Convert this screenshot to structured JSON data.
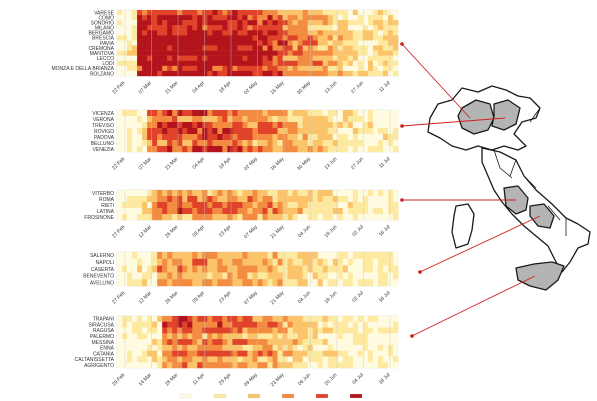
{
  "chart_data": [
    {
      "type": "heatmap",
      "region": "Lombardia",
      "rows": [
        "VARESE",
        "COMO",
        "SONDRIO",
        "MILANO",
        "BERGAMO",
        "BRESCIA",
        "PAVIA",
        "CREMONA",
        "MANTOVA",
        "LECCO",
        "LODI",
        "MONZA E DELLA BRIANZA",
        "BOLZANO"
      ],
      "x_ticks": [
        "22-Feb",
        "07-Mar",
        "21-Mar",
        "04-Apr",
        "18-Apr",
        "02-May",
        "16-May",
        "30-May",
        "13-Jun",
        "27-Jun",
        "11-Jul"
      ],
      "x_tick_labels": [
        "22 Feb",
        "07 Mar",
        "21 Mar",
        "04 Apr",
        "18 Apr",
        "02 May",
        "16 May",
        "30 May",
        "13 Jun",
        "27 Jun",
        "11 Jul"
      ],
      "intensity": {
        "peak_start": 0.06,
        "peak_end": 0.42,
        "peak_level": 0.95,
        "tail_level": 0.25
      }
    },
    {
      "type": "heatmap",
      "region": "Veneto",
      "rows": [
        "VICENZA",
        "VERONA",
        "TREVISO",
        "ROVIGO",
        "PADOVA",
        "BELLUNO",
        "VENEZIA"
      ],
      "x_ticks": [
        "22-Feb",
        "07-Mar",
        "21-Mar",
        "04-Apr",
        "18-Apr",
        "02-May",
        "16-May",
        "30-May",
        "13-Jun",
        "27-Jun",
        "11-Jul"
      ],
      "x_tick_labels": [
        "22 Feb",
        "07 Mar",
        "21 Mar",
        "04 Apr",
        "18 Apr",
        "02 May",
        "16 May",
        "30 May",
        "13 Jun",
        "27 Jun",
        "11 Jul"
      ],
      "intensity": {
        "peak_start": 0.1,
        "peak_end": 0.4,
        "peak_level": 0.75,
        "tail_level": 0.18
      }
    },
    {
      "type": "heatmap",
      "region": "Lazio",
      "rows": [
        "VITERBO",
        "ROMA",
        "RIETI",
        "LATINA",
        "FROSINONE"
      ],
      "x_ticks": [
        "27-Feb",
        "12-Mar",
        "26-Mar",
        "09-Apr",
        "23-Apr",
        "07-May",
        "21-May",
        "04-Jun",
        "18-Jun",
        "02-Jul",
        "16-Jul"
      ],
      "x_tick_labels": [
        "27 Feb",
        "12 Mar",
        "26 Mar",
        "09 Apr",
        "23 Apr",
        "07 May",
        "21 May",
        "04 Jun",
        "18 Jun",
        "02 Jul",
        "16 Jul"
      ],
      "intensity": {
        "peak_start": 0.12,
        "peak_end": 0.45,
        "peak_level": 0.55,
        "tail_level": 0.12
      }
    },
    {
      "type": "heatmap",
      "region": "Campania",
      "rows": [
        "SALERNO",
        "NAPOLI",
        "CASERTA",
        "BENEVENTO",
        "AVELLINO"
      ],
      "x_ticks": [
        "27-Feb",
        "12-Mar",
        "26-Mar",
        "09-Apr",
        "23-Apr",
        "07-May",
        "21-May",
        "04-Jun",
        "18-Jun",
        "02-Jul",
        "16-Jul"
      ],
      "x_tick_labels": [
        "27 Feb",
        "12 Mar",
        "26 Mar",
        "09 Apr",
        "23 Apr",
        "07 May",
        "21 May",
        "04 Jun",
        "18 Jun",
        "02 Jul",
        "16 Jul"
      ],
      "intensity": {
        "peak_start": 0.14,
        "peak_end": 0.45,
        "peak_level": 0.45,
        "tail_level": 0.12
      }
    },
    {
      "type": "heatmap",
      "region": "Sicilia",
      "rows": [
        "TRAPANI",
        "SIRACUSA",
        "RAGUSA",
        "PALERMO",
        "MESSINA",
        "ENNA",
        "CATANIA",
        "CALTANISSETTA",
        "AGRIGENTO"
      ],
      "x_ticks": [
        "29-Feb",
        "14-Mar",
        "28-Mar",
        "11-Apr",
        "25-Apr",
        "09-May",
        "23-May",
        "06-Jun",
        "20-Jun",
        "04-Jul",
        "18-Jul"
      ],
      "x_tick_labels": [
        "29 Feb",
        "14 Mar",
        "28 Mar",
        "11 Apr",
        "25 Apr",
        "09 May",
        "23 May",
        "06 Jun",
        "20 Jun",
        "04 Jul",
        "18 Jul"
      ],
      "intensity": {
        "peak_start": 0.15,
        "peak_end": 0.42,
        "peak_level": 0.6,
        "tail_level": 0.12
      }
    }
  ],
  "colors": {
    "scale": [
      "#fffbe0",
      "#fde9a0",
      "#fbc46a",
      "#f38b40",
      "#e0432a",
      "#b3141c"
    ],
    "grid": "#c8c8c8",
    "arrow": "#d02020",
    "map_fill": "#ffffff",
    "map_highlight": "#b4b4b4",
    "map_stroke": "#1a1a1a"
  },
  "legend": {
    "swatches": 6
  },
  "map": {
    "highlighted_regions": [
      "Lombardia",
      "Veneto",
      "Lazio",
      "Campania",
      "Sicilia"
    ]
  }
}
